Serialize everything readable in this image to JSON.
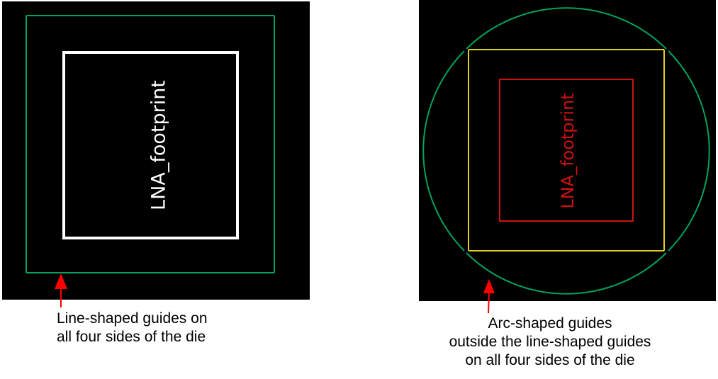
{
  "left_panel": {
    "footprint_label": "LNA_footprint",
    "colors": {
      "background": "#000000",
      "guide_lines": "#00a35c",
      "footprint": "#ffffff"
    }
  },
  "right_panel": {
    "footprint_label": "LNA_footprint",
    "colors": {
      "background": "#000000",
      "arc_guides": "#00a35c",
      "line_guides": "#e0d020",
      "footprint": "#cc1111"
    }
  },
  "captions": {
    "left": {
      "line1": "Line-shaped guides on",
      "line2": "all four sides of the die"
    },
    "right": {
      "line1": "Arc-shaped guides",
      "line2": "outside the line-shaped guides",
      "line3": "on all four sides of the die"
    }
  },
  "arrow_color": "#ff0000"
}
